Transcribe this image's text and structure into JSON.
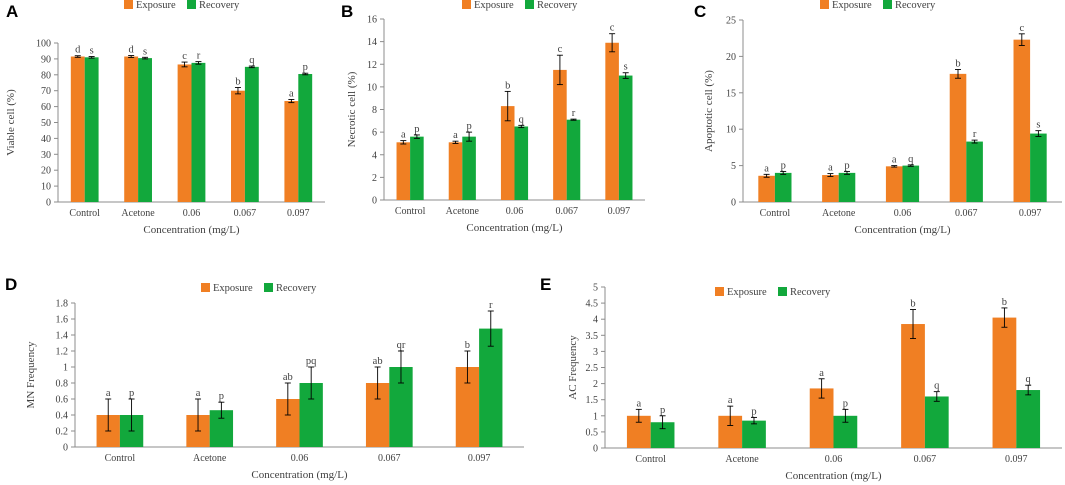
{
  "colors": {
    "exposure": "#F07F23",
    "recovery": "#12A83C",
    "axis": "#8C8C8C",
    "text": "#404040"
  },
  "chart_data": [
    {
      "panel": "A",
      "type": "bar",
      "categories": [
        "Control",
        "Acetone",
        "0.06",
        "0.067",
        "0.097"
      ],
      "xlabel": "Concentration (mg/L)",
      "ylabel": "Viable cell (%)",
      "ylim": [
        0,
        100
      ],
      "ytick_step": 10,
      "legend": [
        "Exposure",
        "Recovery"
      ],
      "series": [
        {
          "name": "Exposure",
          "values": [
            91.5,
            91.5,
            86.5,
            70,
            63.5
          ],
          "errors": [
            0.5,
            0.6,
            1.5,
            2,
            1
          ],
          "letters": [
            "d",
            "d",
            "c",
            "b",
            "a"
          ]
        },
        {
          "name": "Recovery",
          "values": [
            91,
            90.5,
            87.5,
            85,
            80.5
          ],
          "errors": [
            0.5,
            0.5,
            0.8,
            0.5,
            0.5
          ],
          "letters": [
            "s",
            "s",
            "r",
            "q",
            "p"
          ]
        }
      ]
    },
    {
      "panel": "B",
      "type": "bar",
      "categories": [
        "Control",
        "Acetone",
        "0.06",
        "0.067",
        "0.097"
      ],
      "xlabel": "Concentration (mg/L)",
      "ylabel": "Necrotic cell (%)",
      "ylim": [
        0,
        16
      ],
      "ytick_step": 2,
      "legend": [
        "Exposure",
        "Recovery"
      ],
      "series": [
        {
          "name": "Exposure",
          "values": [
            5.1,
            5.1,
            8.3,
            11.5,
            13.9
          ],
          "errors": [
            0.15,
            0.1,
            1.3,
            1.3,
            0.8
          ],
          "letters": [
            "a",
            "a",
            "b",
            "c",
            "c"
          ]
        },
        {
          "name": "Recovery",
          "values": [
            5.6,
            5.6,
            6.5,
            7.1,
            11.0
          ],
          "errors": [
            0.15,
            0.4,
            0.1,
            0.05,
            0.25
          ],
          "letters": [
            "p",
            "p",
            "q",
            "r",
            "s"
          ]
        }
      ]
    },
    {
      "panel": "C",
      "type": "bar",
      "categories": [
        "Control",
        "Acetone",
        "0.06",
        "0.067",
        "0.097"
      ],
      "xlabel": "Concentration (mg/L)",
      "ylabel": "Apoptotic cell (%)",
      "ylim": [
        0,
        25
      ],
      "ytick_step": 5,
      "legend": [
        "Exposure",
        "Recovery"
      ],
      "series": [
        {
          "name": "Exposure",
          "values": [
            3.6,
            3.7,
            4.9,
            17.6,
            22.3
          ],
          "errors": [
            0.2,
            0.2,
            0.1,
            0.6,
            0.8
          ],
          "letters": [
            "a",
            "a",
            "a",
            "b",
            "c"
          ]
        },
        {
          "name": "Recovery",
          "values": [
            4.0,
            4.0,
            5.0,
            8.3,
            9.4
          ],
          "errors": [
            0.2,
            0.2,
            0.1,
            0.2,
            0.4
          ],
          "letters": [
            "p",
            "p",
            "q",
            "r",
            "s"
          ]
        }
      ]
    },
    {
      "panel": "D",
      "type": "bar",
      "categories": [
        "Control",
        "Acetone",
        "0.06",
        "0.067",
        "0.097"
      ],
      "xlabel": "Concentration (mg/L)",
      "ylabel": "MN Frequency",
      "ylim": [
        0,
        1.8
      ],
      "ytick_step": 0.2,
      "legend": [
        "Exposure",
        "Recovery"
      ],
      "series": [
        {
          "name": "Exposure",
          "values": [
            0.4,
            0.4,
            0.6,
            0.8,
            1.0
          ],
          "errors": [
            0.2,
            0.2,
            0.2,
            0.2,
            0.2
          ],
          "letters": [
            "a",
            "a",
            "ab",
            "ab",
            "b"
          ]
        },
        {
          "name": "Recovery",
          "values": [
            0.4,
            0.46,
            0.8,
            1.0,
            1.48
          ],
          "errors": [
            0.2,
            0.1,
            0.2,
            0.2,
            0.22
          ],
          "letters": [
            "p",
            "p",
            "pq",
            "qr",
            "r"
          ]
        }
      ]
    },
    {
      "panel": "E",
      "type": "bar",
      "categories": [
        "Control",
        "Acetone",
        "0.06",
        "0.067",
        "0.097"
      ],
      "xlabel": "Concentration (mg/L)",
      "ylabel": "AC Frequency",
      "ylim": [
        0,
        5
      ],
      "ytick_step": 0.5,
      "legend": [
        "Exposure",
        "Recovery"
      ],
      "series": [
        {
          "name": "Exposure",
          "values": [
            1.0,
            1.0,
            1.85,
            3.85,
            4.05
          ],
          "errors": [
            0.2,
            0.3,
            0.3,
            0.45,
            0.3
          ],
          "letters": [
            "a",
            "a",
            "a",
            "b",
            "b"
          ]
        },
        {
          "name": "Recovery",
          "values": [
            0.8,
            0.85,
            1.0,
            1.6,
            1.8
          ],
          "errors": [
            0.2,
            0.1,
            0.2,
            0.15,
            0.15
          ],
          "letters": [
            "p",
            "p",
            "p",
            "q",
            "q"
          ]
        }
      ]
    }
  ]
}
